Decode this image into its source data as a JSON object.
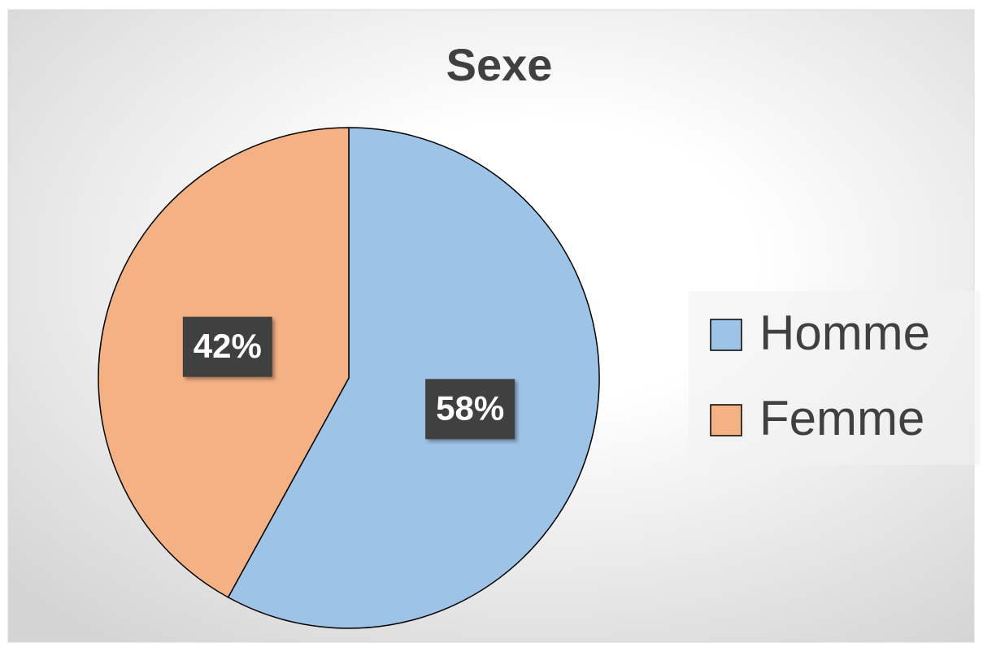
{
  "chart_data": {
    "type": "pie",
    "title": "Sexe",
    "categories": [
      "Homme",
      "Femme"
    ],
    "values": [
      58,
      42
    ],
    "value_labels": [
      "58%",
      "42%"
    ],
    "colors": [
      "#9dc3e6",
      "#f4b183"
    ],
    "legend": "right"
  }
}
